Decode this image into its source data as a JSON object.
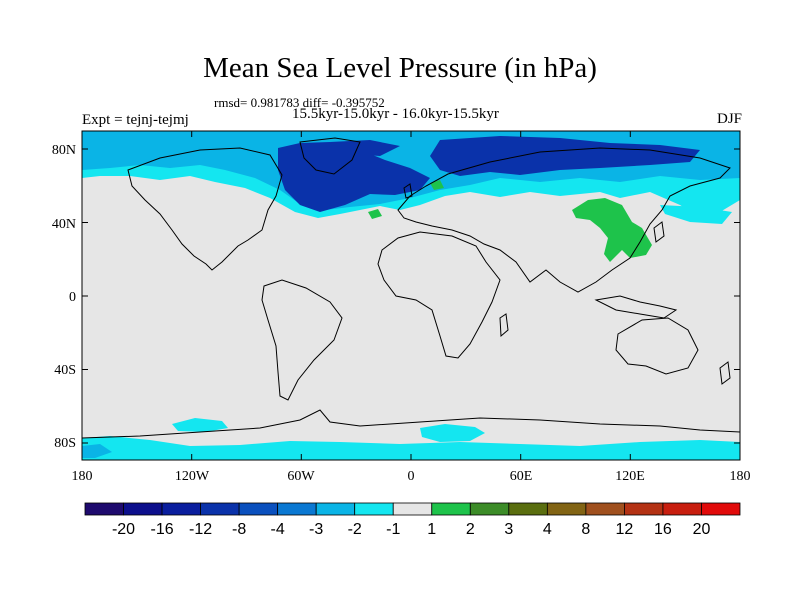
{
  "title": "Mean Sea Level Pressure (in hPa)",
  "stats_line": "rmsd= 0.981783 diff= -0.395752",
  "period_line": "15.5kyr-15.0kyr - 16.0kyr-15.5kyr",
  "experiment_label": "Expt = tejnj-tejmj",
  "season_label": "DJF",
  "lat_ticks": [
    "80N",
    "40N",
    "0",
    "40S",
    "80S"
  ],
  "lon_ticks": [
    "180",
    "120W",
    "60W",
    "0",
    "60E",
    "120E",
    "180"
  ],
  "colorbar": {
    "labels": [
      "-20",
      "-16",
      "-12",
      "-8",
      "-4",
      "-3",
      "-2",
      "-1",
      "1",
      "2",
      "3",
      "4",
      "8",
      "12",
      "16",
      "20"
    ],
    "colors": [
      "#1e0a6e",
      "#0c0f8c",
      "#0a1e9e",
      "#0a32aa",
      "#0a50be",
      "#0a78d2",
      "#0ab4e6",
      "#14e6f0",
      "#e6e6e6",
      "#1ec34b",
      "#3c8c28",
      "#5a6e0f",
      "#826414",
      "#a0501e",
      "#b43214",
      "#c81e0f",
      "#e10a0a"
    ]
  },
  "colors": {
    "neutral": "#e6e6e6",
    "light_negative": "#14e6f0",
    "mid_negative": "#0ab4e6",
    "strong_negative": "#0a32aa",
    "positive": "#1ec34b"
  }
}
